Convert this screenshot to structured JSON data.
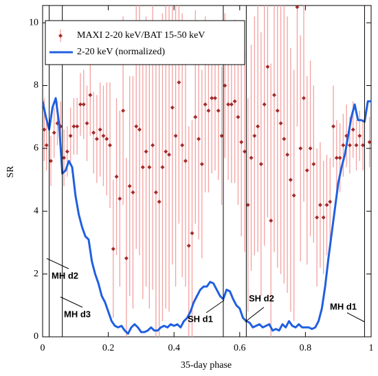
{
  "chart_data": {
    "type": "scatter",
    "xlabel": "35-day phase",
    "ylabel": "SR",
    "xlim": [
      0,
      1
    ],
    "ylim": [
      0,
      10.55
    ],
    "xticks": [
      0,
      0.2,
      0.4,
      0.6,
      0.8,
      1
    ],
    "yticks": [
      0,
      2,
      4,
      6,
      8,
      10
    ],
    "legend": "upper left",
    "vlines": [
      0.02,
      0.06,
      0.55,
      0.62,
      0.98
    ],
    "annotations": [
      "MH d2",
      "MH d3",
      "SH d1",
      "SH d2",
      "MH d1"
    ],
    "series": [
      {
        "name": "MAXI 2-20 keV/BAT 15-50 keV",
        "type": "errorbar",
        "color": "#a52a2a",
        "error_color": "#f4a0a0",
        "x": [
          0.005,
          0.012,
          0.025,
          0.035,
          0.045,
          0.055,
          0.065,
          0.075,
          0.085,
          0.095,
          0.105,
          0.115,
          0.125,
          0.135,
          0.145,
          0.155,
          0.165,
          0.175,
          0.185,
          0.195,
          0.205,
          0.215,
          0.225,
          0.235,
          0.245,
          0.255,
          0.265,
          0.275,
          0.285,
          0.295,
          0.305,
          0.315,
          0.325,
          0.335,
          0.345,
          0.355,
          0.365,
          0.375,
          0.385,
          0.395,
          0.405,
          0.415,
          0.425,
          0.435,
          0.445,
          0.455,
          0.465,
          0.475,
          0.485,
          0.495,
          0.505,
          0.515,
          0.525,
          0.535,
          0.545,
          0.555,
          0.565,
          0.575,
          0.585,
          0.595,
          0.605,
          0.615,
          0.625,
          0.635,
          0.645,
          0.655,
          0.665,
          0.675,
          0.685,
          0.695,
          0.705,
          0.715,
          0.725,
          0.735,
          0.745,
          0.755,
          0.765,
          0.775,
          0.785,
          0.795,
          0.805,
          0.815,
          0.825,
          0.835,
          0.845,
          0.855,
          0.865,
          0.875,
          0.885,
          0.895,
          0.905,
          0.915,
          0.925,
          0.935,
          0.945,
          0.955,
          0.965,
          0.975,
          0.995
        ],
        "values": [
          6.6,
          6.1,
          5.6,
          6.5,
          6.8,
          6.7,
          5.7,
          5.9,
          6.4,
          6.7,
          6.7,
          7.4,
          7.4,
          6.8,
          7.7,
          6.5,
          6.3,
          6.6,
          6.4,
          6.3,
          6.1,
          2.8,
          5.1,
          4.4,
          7.2,
          2.5,
          4.8,
          4.6,
          6.7,
          6.6,
          5.4,
          5.9,
          5.4,
          6.1,
          4.6,
          4.3,
          5.4,
          5.9,
          5.8,
          7.3,
          6.4,
          8.1,
          6.1,
          5.6,
          2.9,
          3.3,
          7.0,
          6.3,
          5.5,
          7.4,
          7.2,
          7.6,
          7.6,
          7.2,
          6.4,
          8.0,
          7.4,
          7.4,
          7.5,
          7.0,
          6.2,
          5.9,
          4.2,
          5.7,
          6.4,
          6.7,
          5.5,
          7.4,
          8.6,
          3.7,
          7.7,
          7.2,
          6.8,
          6.3,
          5.8,
          5.0,
          4.5,
          10.5,
          6.0,
          7.6,
          5.3,
          6.0,
          5.5,
          3.8,
          4.2,
          3.8,
          4.2,
          4.3,
          6.7,
          5.7,
          5.7,
          6.1,
          6.4,
          6.1,
          6.6,
          6.1,
          6.4,
          6.1,
          6.2
        ],
        "errors": [
          1.0,
          0.8,
          0.8,
          0.8,
          0.7,
          0.8,
          0.9,
          0.8,
          0.9,
          0.9,
          0.9,
          1.0,
          1.1,
          1.2,
          1.3,
          1.3,
          1.4,
          1.5,
          1.6,
          1.8,
          2.0,
          2.2,
          2.5,
          2.8,
          3.0,
          3.2,
          3.5,
          3.7,
          3.9,
          4.0,
          4.2,
          4.3,
          4.5,
          4.6,
          4.7,
          4.8,
          4.9,
          5.0,
          5.0,
          5.0,
          4.8,
          4.5,
          4.2,
          4.0,
          3.8,
          3.6,
          3.4,
          3.2,
          3.0,
          2.8,
          2.6,
          2.4,
          2.3,
          2.2,
          2.2,
          2.3,
          2.4,
          2.5,
          2.6,
          2.8,
          3.0,
          3.2,
          3.4,
          3.6,
          3.8,
          4.0,
          4.2,
          4.5,
          4.8,
          5.0,
          5.0,
          5.0,
          4.8,
          4.6,
          4.4,
          4.2,
          4.0,
          3.8,
          3.6,
          3.3,
          3.0,
          2.8,
          2.5,
          2.2,
          2.0,
          1.8,
          1.6,
          1.4,
          1.3,
          1.2,
          1.1,
          1.0,
          1.0,
          0.9,
          0.9,
          0.8,
          0.8,
          0.8,
          0.8
        ]
      },
      {
        "name": "2-20 keV (normalized)",
        "type": "line",
        "color": "#1f5fe0",
        "x": [
          0,
          0.01,
          0.02,
          0.03,
          0.04,
          0.05,
          0.06,
          0.07,
          0.08,
          0.09,
          0.1,
          0.11,
          0.12,
          0.13,
          0.14,
          0.15,
          0.16,
          0.17,
          0.18,
          0.19,
          0.2,
          0.21,
          0.22,
          0.23,
          0.24,
          0.25,
          0.26,
          0.27,
          0.28,
          0.29,
          0.3,
          0.31,
          0.32,
          0.33,
          0.34,
          0.35,
          0.36,
          0.37,
          0.38,
          0.39,
          0.4,
          0.41,
          0.42,
          0.43,
          0.44,
          0.45,
          0.46,
          0.47,
          0.48,
          0.49,
          0.5,
          0.51,
          0.52,
          0.53,
          0.54,
          0.55,
          0.56,
          0.57,
          0.58,
          0.59,
          0.6,
          0.61,
          0.62,
          0.63,
          0.64,
          0.65,
          0.66,
          0.67,
          0.68,
          0.69,
          0.7,
          0.71,
          0.72,
          0.73,
          0.74,
          0.75,
          0.76,
          0.77,
          0.78,
          0.79,
          0.8,
          0.81,
          0.82,
          0.83,
          0.84,
          0.85,
          0.86,
          0.87,
          0.88,
          0.89,
          0.9,
          0.91,
          0.92,
          0.93,
          0.94,
          0.95,
          0.96,
          0.97,
          0.98,
          0.99,
          1
        ],
        "values": [
          7.5,
          7.0,
          6.6,
          7.3,
          7.6,
          6.8,
          5.2,
          5.3,
          5.6,
          5.4,
          4.5,
          3.9,
          3.5,
          3.2,
          3.1,
          2.4,
          2.0,
          1.7,
          1.3,
          1.1,
          0.8,
          0.5,
          0.35,
          0.3,
          0.35,
          0.2,
          0.1,
          0.3,
          0.4,
          0.3,
          0.15,
          0.15,
          0.2,
          0.3,
          0.2,
          0.2,
          0.3,
          0.35,
          0.3,
          0.4,
          0.35,
          0.4,
          0.3,
          0.5,
          0.6,
          0.8,
          1.1,
          1.3,
          1.5,
          1.6,
          1.6,
          1.75,
          1.7,
          1.5,
          1.3,
          1.2,
          1.5,
          1.45,
          1.2,
          1.0,
          0.9,
          0.6,
          0.5,
          0.45,
          0.3,
          0.35,
          0.4,
          0.3,
          0.35,
          0.4,
          0.2,
          0.25,
          0.2,
          0.4,
          0.3,
          0.5,
          0.35,
          0.3,
          0.4,
          0.3,
          0.3,
          0.3,
          0.25,
          0.3,
          0.5,
          0.9,
          1.6,
          2.5,
          3.3,
          4.1,
          4.9,
          5.4,
          5.8,
          6.4,
          7.0,
          7.4,
          6.9,
          6.9,
          6.85,
          7.5,
          7.5
        ]
      }
    ]
  }
}
